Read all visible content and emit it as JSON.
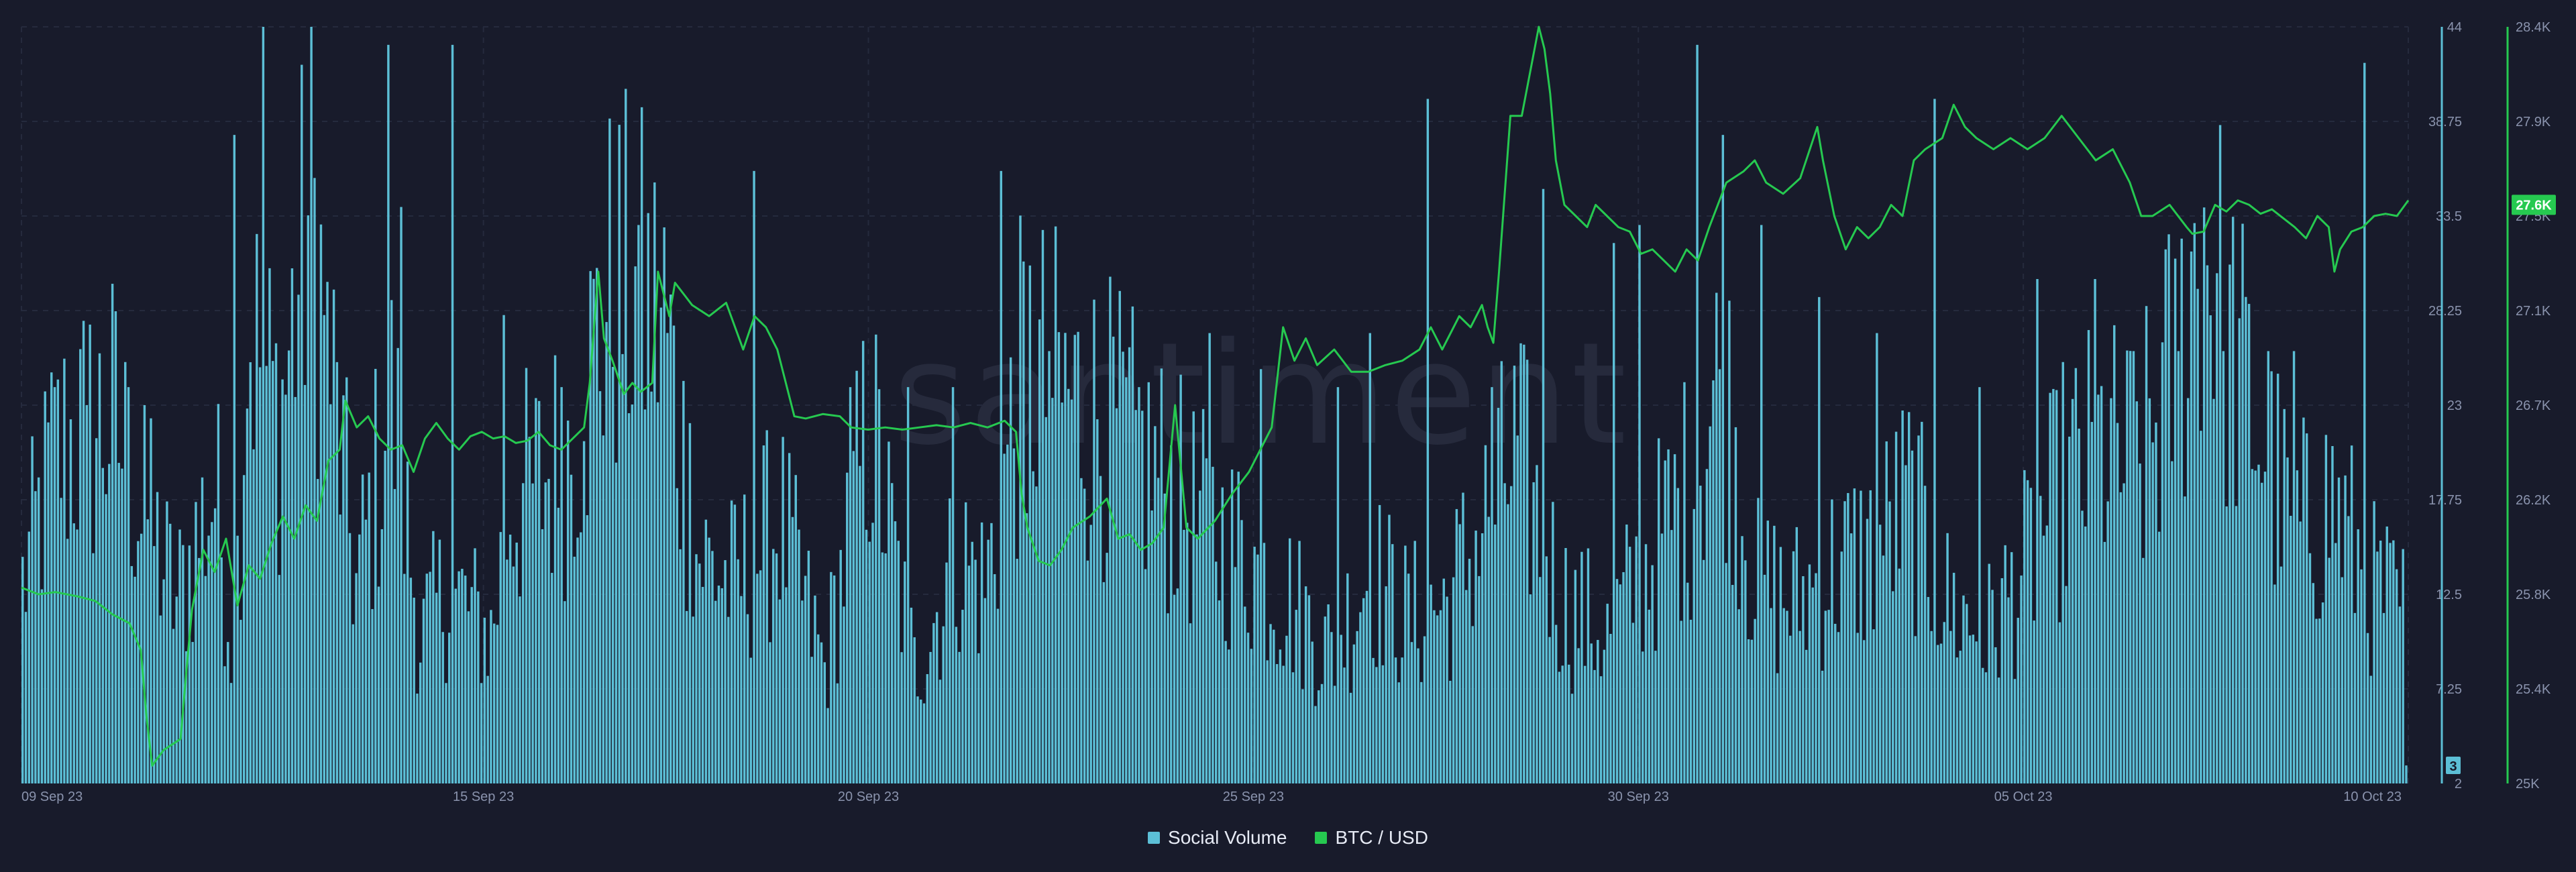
{
  "chart_data": {
    "type": "bar+line",
    "watermark": "santiment",
    "x_ticks": [
      "09 Sep 23",
      "15 Sep 23",
      "20 Sep 23",
      "25 Sep 23",
      "30 Sep 23",
      "05 Oct 23",
      "10 Oct 23"
    ],
    "y_left_ticks": [
      "2",
      "7.25",
      "12.5",
      "17.75",
      "23",
      "28.25",
      "33.5",
      "38.75",
      "44"
    ],
    "y_left_range": [
      2,
      44
    ],
    "y_right_ticks": [
      "25K",
      "25.4K",
      "25.8K",
      "26.2K",
      "26.7K",
      "27.1K",
      "27.5K",
      "27.9K",
      "28.4K"
    ],
    "y_right_range": [
      25000,
      28400
    ],
    "x_range": [
      "2023-09-09T00:00",
      "2023-10-10T00:00"
    ],
    "last_social_volume": "3",
    "last_price": "27.6K",
    "series": [
      {
        "name": "Social Volume",
        "kind": "bar",
        "color": "#5cbfd6",
        "interval": "hourly",
        "anchors": [
          [
            0,
            14
          ],
          [
            10,
            22
          ],
          [
            28,
            24
          ],
          [
            48,
            13
          ],
          [
            60,
            20
          ],
          [
            66,
            10
          ],
          [
            70,
            30
          ],
          [
            80,
            24
          ],
          [
            90,
            37
          ],
          [
            104,
            14
          ],
          [
            115,
            25
          ],
          [
            124,
            11
          ],
          [
            133,
            14
          ],
          [
            146,
            11
          ],
          [
            152,
            19
          ],
          [
            160,
            20
          ],
          [
            170,
            22
          ],
          [
            184,
            32
          ],
          [
            200,
            30
          ],
          [
            210,
            16
          ],
          [
            222,
            14
          ],
          [
            236,
            18
          ],
          [
            250,
            9
          ],
          [
            264,
            24
          ],
          [
            278,
            9
          ],
          [
            292,
            16
          ],
          [
            300,
            14
          ],
          [
            312,
            27
          ],
          [
            336,
            24
          ],
          [
            352,
            21
          ],
          [
            366,
            18
          ],
          [
            380,
            16
          ],
          [
            396,
            13
          ],
          [
            408,
            10
          ],
          [
            420,
            15
          ],
          [
            432,
            12
          ],
          [
            444,
            13
          ],
          [
            456,
            18
          ],
          [
            466,
            22
          ],
          [
            480,
            13
          ],
          [
            494,
            11
          ],
          [
            508,
            16
          ],
          [
            520,
            20
          ],
          [
            530,
            27
          ],
          [
            540,
            14
          ],
          [
            552,
            13
          ],
          [
            564,
            15
          ],
          [
            576,
            16
          ],
          [
            588,
            19
          ],
          [
            600,
            13
          ],
          [
            612,
            11
          ],
          [
            624,
            15
          ],
          [
            636,
            20
          ],
          [
            648,
            22
          ],
          [
            660,
            21
          ],
          [
            672,
            28
          ],
          [
            680,
            36
          ],
          [
            686,
            30
          ],
          [
            696,
            24
          ],
          [
            708,
            17
          ],
          [
            720,
            19
          ],
          [
            732,
            14
          ],
          [
            744,
            12
          ]
        ],
        "spikes": [
          [
            10,
            24
          ],
          [
            20,
            23
          ],
          [
            33,
            24
          ],
          [
            38,
            23
          ],
          [
            66,
            38
          ],
          [
            75,
            44
          ],
          [
            94,
            28
          ],
          [
            114,
            43
          ],
          [
            118,
            34
          ],
          [
            134,
            43
          ],
          [
            150,
            28
          ],
          [
            168,
            24
          ],
          [
            175,
            21
          ],
          [
            192,
            33
          ],
          [
            208,
            22
          ],
          [
            228,
            36
          ],
          [
            258,
            24
          ],
          [
            276,
            24
          ],
          [
            290,
            24
          ],
          [
            305,
            36
          ],
          [
            313,
            17
          ],
          [
            320,
            26
          ],
          [
            348,
            24
          ],
          [
            370,
            27
          ],
          [
            386,
            25
          ],
          [
            410,
            24
          ],
          [
            420,
            27
          ],
          [
            438,
            40
          ],
          [
            458,
            24
          ],
          [
            474,
            35
          ],
          [
            496,
            32
          ],
          [
            504,
            33
          ],
          [
            522,
            43
          ],
          [
            530,
            38
          ],
          [
            542,
            33
          ],
          [
            560,
            29
          ],
          [
            578,
            27
          ],
          [
            596,
            40
          ],
          [
            610,
            24
          ],
          [
            628,
            30
          ],
          [
            646,
            30
          ],
          [
            658,
            26
          ],
          [
            672,
            26
          ],
          [
            686,
            26
          ],
          [
            700,
            26
          ],
          [
            708,
            26
          ],
          [
            730,
            42
          ]
        ],
        "last_value": 3
      },
      {
        "name": "BTC / USD",
        "kind": "line",
        "color": "#26c950",
        "interval": "hourly",
        "points": [
          [
            0,
            25880
          ],
          [
            6,
            25850
          ],
          [
            12,
            25860
          ],
          [
            20,
            25840
          ],
          [
            26,
            25820
          ],
          [
            32,
            25760
          ],
          [
            38,
            25720
          ],
          [
            42,
            25600
          ],
          [
            44,
            25300
          ],
          [
            46,
            25080
          ],
          [
            50,
            25150
          ],
          [
            56,
            25200
          ],
          [
            58,
            25500
          ],
          [
            60,
            25780
          ],
          [
            64,
            26050
          ],
          [
            68,
            25950
          ],
          [
            72,
            26100
          ],
          [
            76,
            25800
          ],
          [
            80,
            25980
          ],
          [
            84,
            25920
          ],
          [
            88,
            26080
          ],
          [
            92,
            26200
          ],
          [
            96,
            26100
          ],
          [
            100,
            26250
          ],
          [
            104,
            26180
          ],
          [
            108,
            26450
          ],
          [
            112,
            26500
          ],
          [
            114,
            26720
          ],
          [
            118,
            26600
          ],
          [
            122,
            26650
          ],
          [
            126,
            26550
          ],
          [
            130,
            26500
          ],
          [
            134,
            26520
          ],
          [
            138,
            26400
          ],
          [
            142,
            26550
          ],
          [
            146,
            26620
          ],
          [
            150,
            26550
          ],
          [
            154,
            26500
          ],
          [
            158,
            26560
          ],
          [
            162,
            26580
          ],
          [
            166,
            26550
          ],
          [
            170,
            26560
          ],
          [
            174,
            26530
          ],
          [
            178,
            26540
          ],
          [
            182,
            26580
          ],
          [
            186,
            26520
          ],
          [
            190,
            26500
          ],
          [
            194,
            26550
          ],
          [
            198,
            26600
          ],
          [
            200,
            26800
          ],
          [
            203,
            27300
          ],
          [
            205,
            27000
          ],
          [
            208,
            26900
          ],
          [
            212,
            26750
          ],
          [
            215,
            26800
          ],
          [
            218,
            26760
          ],
          [
            222,
            26800
          ],
          [
            224,
            27300
          ],
          [
            228,
            27100
          ],
          [
            230,
            27250
          ],
          [
            236,
            27150
          ],
          [
            242,
            27100
          ],
          [
            248,
            27160
          ],
          [
            254,
            26950
          ],
          [
            258,
            27100
          ],
          [
            262,
            27050
          ],
          [
            266,
            26950
          ],
          [
            270,
            26750
          ],
          [
            272,
            26650
          ],
          [
            276,
            26640
          ],
          [
            282,
            26660
          ],
          [
            288,
            26650
          ],
          [
            292,
            26600
          ],
          [
            298,
            26590
          ],
          [
            304,
            26600
          ],
          [
            310,
            26590
          ],
          [
            316,
            26600
          ],
          [
            322,
            26610
          ],
          [
            328,
            26600
          ],
          [
            334,
            26620
          ],
          [
            340,
            26600
          ],
          [
            346,
            26630
          ],
          [
            350,
            26580
          ],
          [
            352,
            26300
          ],
          [
            354,
            26150
          ],
          [
            358,
            26000
          ],
          [
            362,
            25980
          ],
          [
            366,
            26050
          ],
          [
            370,
            26150
          ],
          [
            376,
            26200
          ],
          [
            382,
            26280
          ],
          [
            386,
            26100
          ],
          [
            390,
            26120
          ],
          [
            394,
            26050
          ],
          [
            398,
            26080
          ],
          [
            402,
            26150
          ],
          [
            406,
            26700
          ],
          [
            410,
            26150
          ],
          [
            414,
            26100
          ],
          [
            420,
            26180
          ],
          [
            426,
            26300
          ],
          [
            432,
            26400
          ],
          [
            436,
            26500
          ],
          [
            440,
            26600
          ],
          [
            444,
            27050
          ],
          [
            448,
            26900
          ],
          [
            452,
            27000
          ],
          [
            456,
            26880
          ],
          [
            462,
            26950
          ],
          [
            468,
            26850
          ],
          [
            474,
            26850
          ],
          [
            480,
            26880
          ],
          [
            486,
            26900
          ],
          [
            492,
            26950
          ],
          [
            496,
            27050
          ],
          [
            500,
            26950
          ],
          [
            506,
            27100
          ],
          [
            510,
            27050
          ],
          [
            514,
            27150
          ],
          [
            516,
            27050
          ],
          [
            518,
            26980
          ],
          [
            520,
            27300
          ],
          [
            524,
            28000
          ],
          [
            528,
            28000
          ],
          [
            531,
            28200
          ],
          [
            534,
            28400
          ],
          [
            536,
            28300
          ],
          [
            538,
            28100
          ],
          [
            540,
            27800
          ],
          [
            543,
            27600
          ],
          [
            547,
            27550
          ],
          [
            551,
            27500
          ],
          [
            554,
            27600
          ],
          [
            558,
            27550
          ],
          [
            562,
            27500
          ],
          [
            566,
            27480
          ],
          [
            570,
            27380
          ],
          [
            574,
            27400
          ],
          [
            578,
            27350
          ],
          [
            582,
            27300
          ],
          [
            586,
            27400
          ],
          [
            590,
            27350
          ],
          [
            594,
            27500
          ],
          [
            600,
            27700
          ],
          [
            606,
            27750
          ],
          [
            610,
            27800
          ],
          [
            614,
            27700
          ],
          [
            620,
            27650
          ],
          [
            626,
            27720
          ],
          [
            632,
            27950
          ],
          [
            634,
            27800
          ],
          [
            638,
            27550
          ],
          [
            642,
            27400
          ],
          [
            646,
            27500
          ],
          [
            650,
            27450
          ],
          [
            654,
            27500
          ],
          [
            658,
            27600
          ],
          [
            662,
            27550
          ],
          [
            666,
            27800
          ],
          [
            670,
            27850
          ],
          [
            676,
            27900
          ],
          [
            680,
            28050
          ],
          [
            684,
            27950
          ],
          [
            688,
            27900
          ],
          [
            694,
            27850
          ],
          [
            700,
            27900
          ],
          [
            706,
            27850
          ],
          [
            712,
            27900
          ],
          [
            718,
            28000
          ],
          [
            724,
            27900
          ],
          [
            730,
            27800
          ],
          [
            736,
            27850
          ],
          [
            742,
            27700
          ],
          [
            746,
            27550
          ],
          [
            750,
            27550
          ],
          [
            756,
            27600
          ],
          [
            762,
            27500
          ],
          [
            764,
            27470
          ],
          [
            768,
            27480
          ],
          [
            772,
            27600
          ],
          [
            776,
            27570
          ],
          [
            780,
            27620
          ],
          [
            784,
            27600
          ],
          [
            788,
            27560
          ],
          [
            792,
            27580
          ],
          [
            796,
            27540
          ],
          [
            800,
            27500
          ],
          [
            804,
            27450
          ],
          [
            808,
            27550
          ],
          [
            812,
            27500
          ],
          [
            814,
            27300
          ],
          [
            816,
            27400
          ],
          [
            820,
            27480
          ],
          [
            824,
            27500
          ],
          [
            828,
            27550
          ],
          [
            832,
            27560
          ],
          [
            836,
            27550
          ],
          [
            840,
            27620
          ]
        ],
        "last_value": 27600
      }
    ],
    "legend": [
      "Social Volume",
      "BTC / USD"
    ],
    "legend_position": "bottom-center",
    "grid": true
  }
}
